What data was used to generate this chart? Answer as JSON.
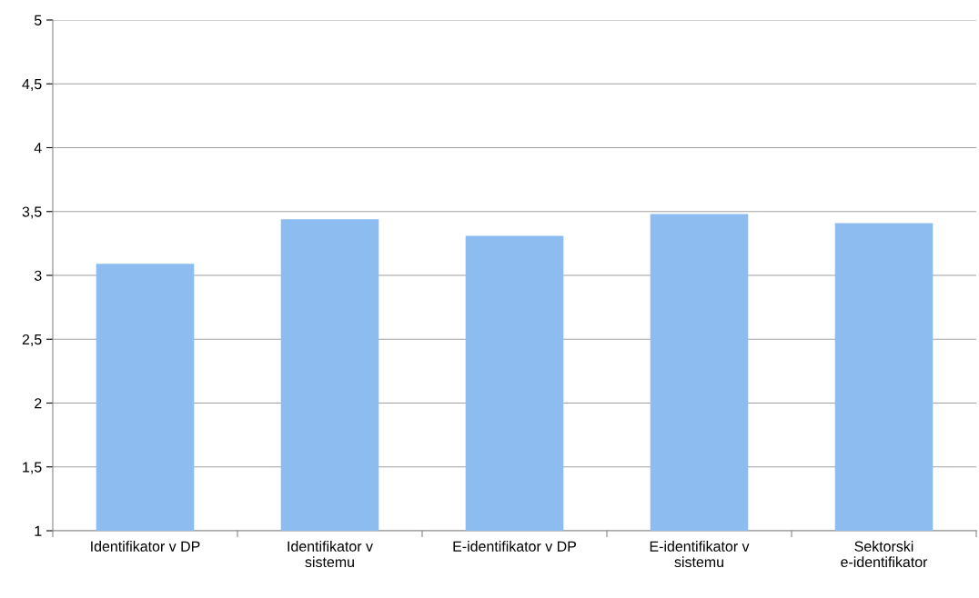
{
  "chart_data": {
    "type": "bar",
    "categories": [
      "Identifikator v DP",
      "Identifikator v sistemu",
      "E-identifikator v DP",
      "E-identifikator v sistemu",
      "Sektorski e-identifikator"
    ],
    "values": [
      3.09,
      3.44,
      3.31,
      3.48,
      3.41
    ],
    "color": "#8dbdf0",
    "ylim": [
      1,
      5
    ],
    "yticks": [
      1,
      {
        "value": 1.5,
        "label": "1,5"
      },
      2,
      {
        "value": 2.5,
        "label": "2,5"
      },
      3,
      {
        "value": 3.5,
        "label": "3,5"
      },
      4,
      {
        "value": 4.5,
        "label": "4,5"
      },
      5
    ],
    "grid": "y"
  }
}
